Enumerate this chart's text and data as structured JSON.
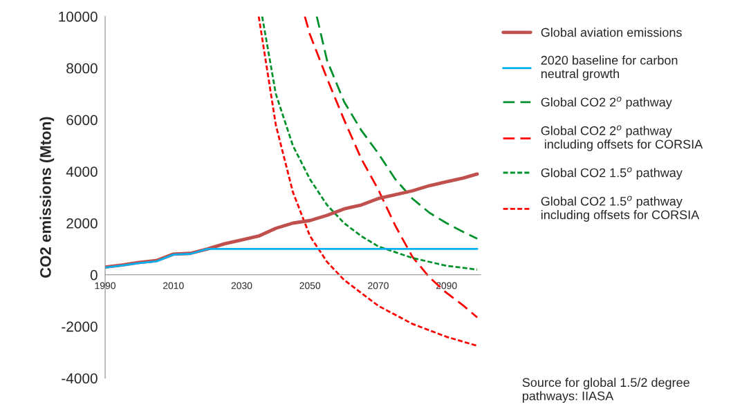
{
  "chart_data": {
    "type": "line",
    "ylabel": "CO2 emissions (Mton)",
    "xlim": [
      1990,
      2100
    ],
    "ylim": [
      -4000,
      10000
    ],
    "xticks": [
      1990,
      2010,
      2030,
      2050,
      2070,
      2090
    ],
    "yticks": [
      -4000,
      -2000,
      0,
      2000,
      4000,
      6000,
      8000,
      10000
    ],
    "grid": false,
    "legend": "right",
    "marker": "none",
    "series": [
      {
        "name": "Global aviation emissions",
        "color": "#c0504d",
        "line_style": "solid",
        "x": [
          1990,
          1995,
          2000,
          2005,
          2010,
          2015,
          2020,
          2025,
          2030,
          2035,
          2040,
          2045,
          2050,
          2055,
          2060,
          2065,
          2070,
          2075,
          2080,
          2085,
          2090,
          2095,
          2099
        ],
        "values": [
          300,
          380,
          480,
          550,
          800,
          830,
          1000,
          1200,
          1350,
          1500,
          1800,
          2000,
          2100,
          2300,
          2550,
          2700,
          2950,
          3100,
          3250,
          3450,
          3600,
          3750,
          3900
        ]
      },
      {
        "name": "2020 baseline for carbon\nneutral growth",
        "color": "#00b0f0",
        "line_style": "solid",
        "x": [
          1990,
          1995,
          2000,
          2005,
          2010,
          2015,
          2020,
          2099
        ],
        "values": [
          280,
          360,
          450,
          520,
          780,
          810,
          1000,
          1000
        ]
      },
      {
        "name": "Global CO2 2$^{o}$ pathway",
        "color": "#00912c",
        "line_style": "dashed",
        "x": [
          2052,
          2055,
          2060,
          2065,
          2070,
          2075,
          2080,
          2085,
          2090,
          2095,
          2099
        ],
        "values": [
          10000,
          8300,
          6700,
          5600,
          4700,
          3700,
          2950,
          2400,
          2000,
          1650,
          1400
        ]
      },
      {
        "name": "Global CO2 2$^{o}$ pathway\n including offsets for CORSIA",
        "color": "#ff0000",
        "line_style": "dashed",
        "x": [
          2048.5,
          2050,
          2055,
          2060,
          2065,
          2070,
          2075,
          2080,
          2085,
          2090,
          2095,
          2099
        ],
        "values": [
          10000,
          9300,
          7600,
          6000,
          4500,
          3300,
          1900,
          700,
          -100,
          -700,
          -1200,
          -1650
        ]
      },
      {
        "name": "Global CO2 1.5$^{o}$ pathway",
        "color": "#00912c",
        "line_style": "dotted",
        "x": [
          2036,
          2040,
          2045,
          2050,
          2055,
          2060,
          2065,
          2070,
          2080,
          2090,
          2099
        ],
        "values": [
          10000,
          7000,
          5000,
          3700,
          2700,
          2000,
          1500,
          1100,
          650,
          350,
          200
        ]
      },
      {
        "name": "Global CO2 1.5$^{o}$ pathway\nincluding offsets for CORSIA",
        "color": "#ff0000",
        "line_style": "dotted",
        "x": [
          2035,
          2040,
          2045,
          2050,
          2055,
          2060,
          2065,
          2070,
          2080,
          2090,
          2099
        ],
        "values": [
          10000,
          5800,
          3200,
          1500,
          500,
          -200,
          -700,
          -1200,
          -1900,
          -2400,
          -2750
        ]
      }
    ],
    "annotations": [
      "Source for global 1.5/2 degree\npathways: IIASA"
    ]
  }
}
